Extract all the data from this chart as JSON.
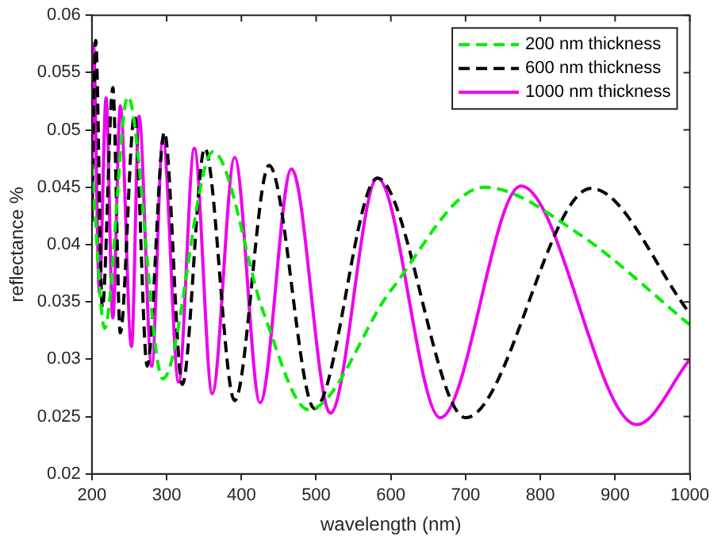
{
  "chart_data": {
    "type": "line",
    "xlabel": "wavelength (nm)",
    "ylabel": "reflectance %",
    "xlim": [
      200,
      1000
    ],
    "xticks": [
      200,
      300,
      400,
      500,
      600,
      700,
      800,
      900,
      1000
    ],
    "ylim": [
      0.02,
      0.06
    ],
    "yticks": [
      0.02,
      0.025,
      0.03,
      0.035,
      0.04,
      0.045,
      0.05,
      0.055,
      0.06
    ],
    "grid": false,
    "legend": "top right",
    "marker": "none",
    "series": [
      {
        "name": "200 nm thickness",
        "color": "#00ee00",
        "line_style": "dashed",
        "x": [
          200,
          217,
          248,
          295,
          362,
          430,
          490,
          600,
          725,
          850,
          1000
        ],
        "values": [
          0.047,
          0.0327,
          0.0529,
          0.0283,
          0.0481,
          0.034,
          0.0256,
          0.036,
          0.045,
          0.041,
          0.033
        ]
      },
      {
        "name": "600 nm thickness",
        "color": "#000000",
        "line_style": "dashed",
        "x": [
          200,
          205,
          214,
          228,
          238,
          257,
          274,
          297,
          321,
          351,
          391,
          437,
          498,
          582,
          700,
          868,
          1000
        ],
        "values": [
          0.042,
          0.0578,
          0.0345,
          0.0537,
          0.0323,
          0.0513,
          0.0294,
          0.0498,
          0.0278,
          0.0484,
          0.0264,
          0.0469,
          0.0257,
          0.0458,
          0.0249,
          0.0449,
          0.034
        ]
      },
      {
        "name": "1000 nm thickness",
        "color": "#ee00ee",
        "line_style": "solid",
        "x": [
          200,
          202,
          210,
          219,
          228,
          238,
          253,
          263,
          280,
          295,
          316,
          337,
          361,
          391,
          425,
          467,
          519,
          582,
          666,
          774,
          929,
          1000
        ],
        "values": [
          0.0425,
          0.0575,
          0.0358,
          0.0528,
          0.0336,
          0.0521,
          0.0311,
          0.0512,
          0.0294,
          0.0492,
          0.028,
          0.0484,
          0.027,
          0.0476,
          0.0262,
          0.0466,
          0.0253,
          0.0458,
          0.0249,
          0.0451,
          0.0243,
          0.03
        ]
      }
    ]
  }
}
